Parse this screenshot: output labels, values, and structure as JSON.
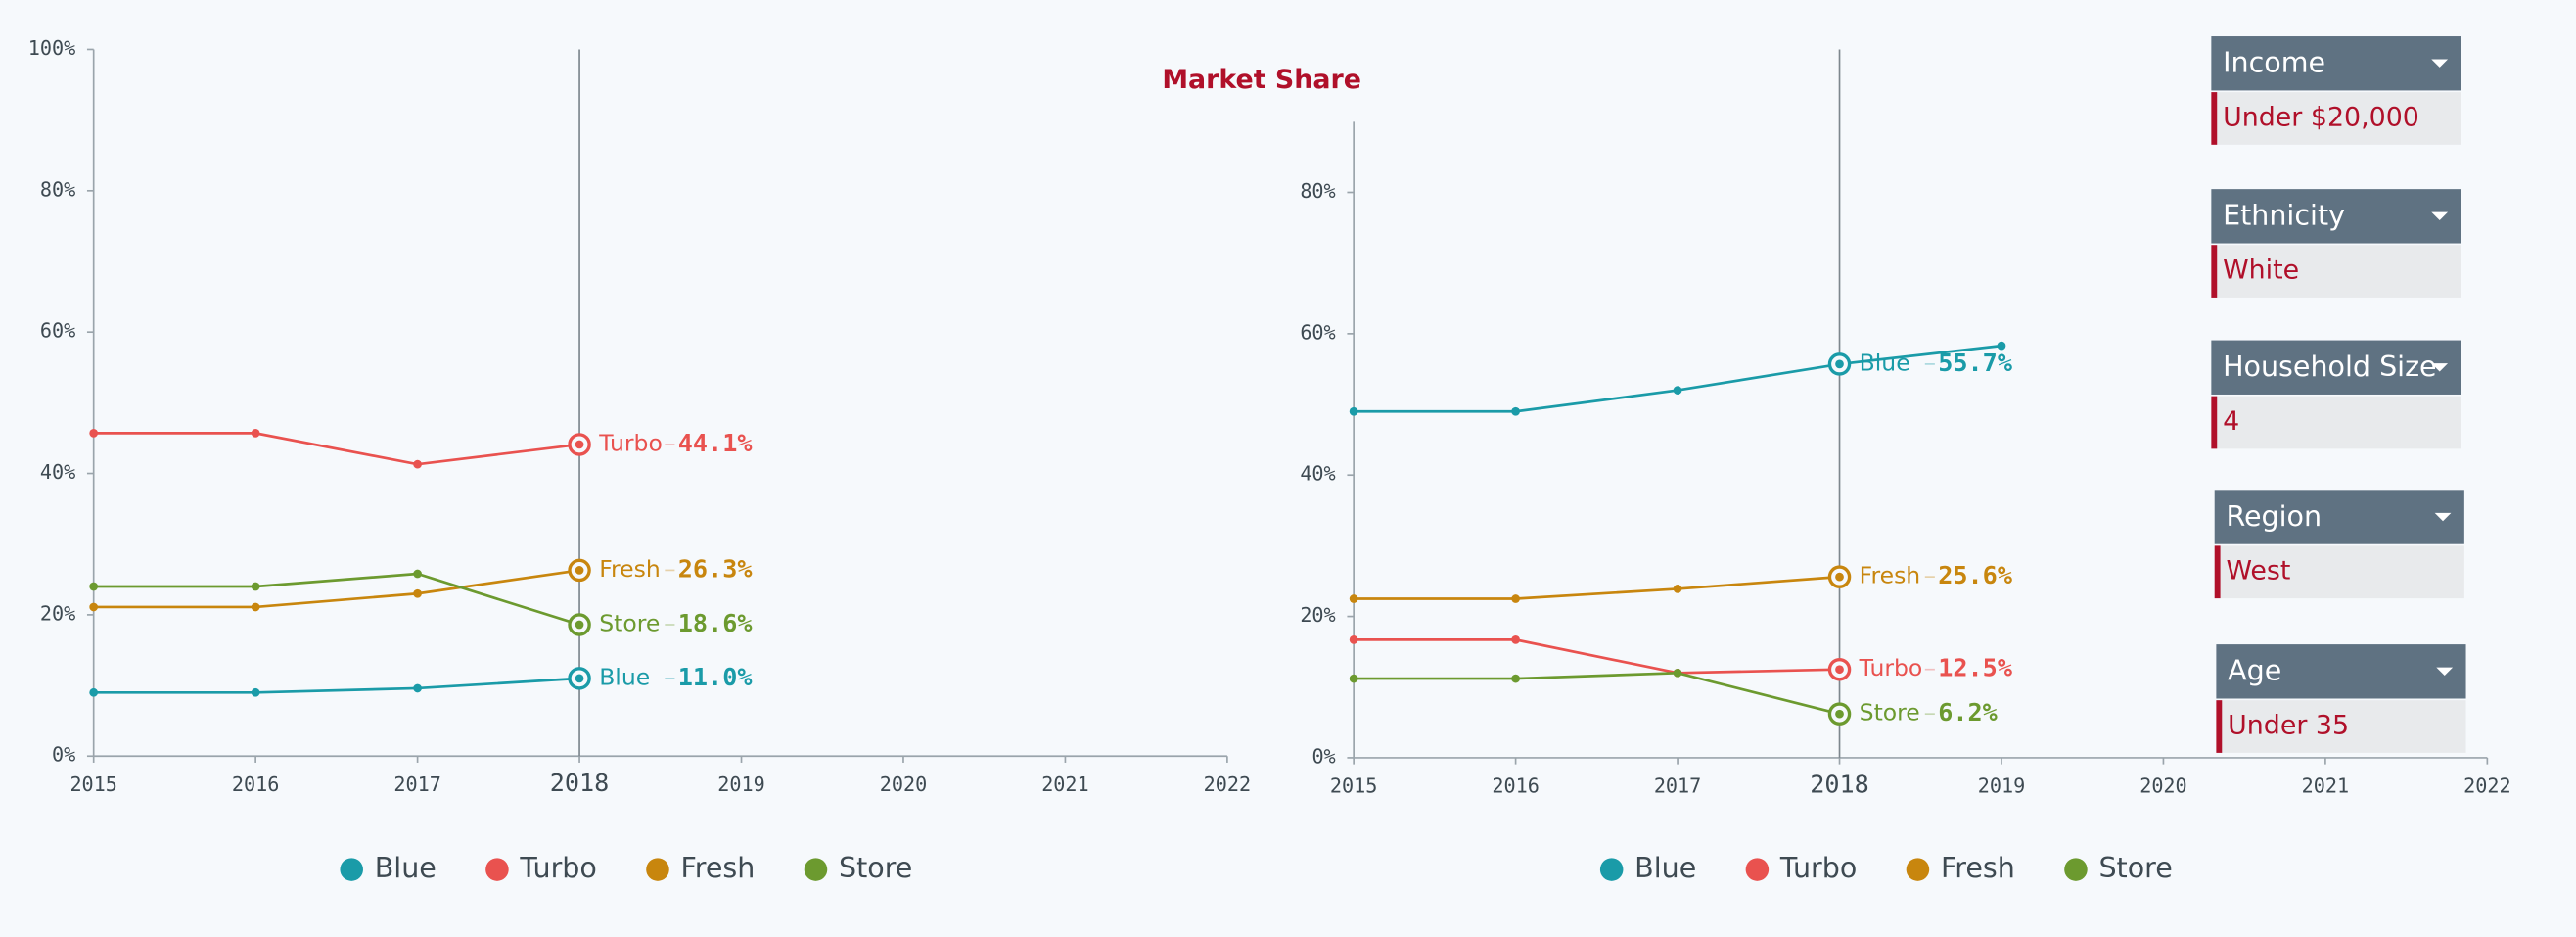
{
  "title": "Market Share",
  "chart_data": [
    {
      "type": "line",
      "x": [
        2015,
        2016,
        2017,
        2018
      ],
      "xlim": [
        2015,
        2022
      ],
      "xticks": [
        2015,
        2016,
        2017,
        2018,
        2019,
        2020,
        2021,
        2022
      ],
      "ylim": [
        0,
        100
      ],
      "yticks": [
        {
          "value": 0,
          "label": "0%"
        },
        {
          "value": 20,
          "label": "20%"
        },
        {
          "value": 40,
          "label": "40%"
        },
        {
          "value": 60,
          "label": "60%"
        },
        {
          "value": 80,
          "label": "80%"
        },
        {
          "value": 100,
          "label": "100%"
        }
      ],
      "cursor_x": 2018,
      "series": [
        {
          "name": "Blue",
          "color": "#1a9ba8",
          "values": [
            9,
            9,
            9.6,
            11.0
          ],
          "value_labels": [
            null,
            null,
            null,
            "11.0%"
          ]
        },
        {
          "name": "Turbo",
          "color": "#e9524f",
          "values": [
            45.7,
            45.7,
            41.3,
            44.1
          ],
          "value_labels": [
            null,
            null,
            null,
            "44.1%"
          ]
        },
        {
          "name": "Fresh",
          "color": "#c8860e",
          "values": [
            21.1,
            21.1,
            23,
            26.3
          ],
          "value_labels": [
            null,
            null,
            null,
            "26.3%"
          ]
        },
        {
          "name": "Store",
          "color": "#6c9a2f",
          "values": [
            24,
            24,
            25.8,
            18.6
          ],
          "value_labels": [
            null,
            null,
            null,
            "18.6%"
          ]
        }
      ]
    },
    {
      "type": "line",
      "x": [
        2015,
        2016,
        2017,
        2018,
        2019
      ],
      "xlim": [
        2015,
        2022
      ],
      "xticks": [
        2015,
        2016,
        2017,
        2018,
        2019,
        2020,
        2021,
        2022
      ],
      "ylim": [
        0,
        90
      ],
      "yticks": [
        {
          "value": 0,
          "label": "0%"
        },
        {
          "value": 20,
          "label": "20%"
        },
        {
          "value": 40,
          "label": "40%"
        },
        {
          "value": 60,
          "label": "60%"
        },
        {
          "value": 80,
          "label": "80%"
        }
      ],
      "cursor_x": 2018,
      "series": [
        {
          "name": "Blue",
          "color": "#1a9ba8",
          "values": [
            49,
            49,
            52,
            55.7,
            58.3
          ],
          "value_labels": [
            null,
            null,
            null,
            "55.7%",
            null
          ]
        },
        {
          "name": "Turbo",
          "color": "#e9524f",
          "values": [
            16.7,
            16.7,
            12,
            12.5,
            null
          ],
          "value_labels": [
            null,
            null,
            null,
            "12.5%",
            null
          ]
        },
        {
          "name": "Fresh",
          "color": "#c8860e",
          "values": [
            22.5,
            22.5,
            23.9,
            25.6,
            null
          ],
          "value_labels": [
            null,
            null,
            null,
            "25.6%",
            null
          ]
        },
        {
          "name": "Store",
          "color": "#6c9a2f",
          "values": [
            11.2,
            11.2,
            12,
            6.2,
            null
          ],
          "value_labels": [
            null,
            null,
            null,
            "6.2%",
            null
          ]
        }
      ]
    }
  ],
  "filters": [
    {
      "label": "Income",
      "value": "Under $20,000"
    },
    {
      "label": "Ethnicity",
      "value": "White"
    },
    {
      "label": "Household Size",
      "value": "4"
    },
    {
      "label": "Region",
      "value": "West"
    },
    {
      "label": "Age",
      "value": "Under 35"
    }
  ]
}
